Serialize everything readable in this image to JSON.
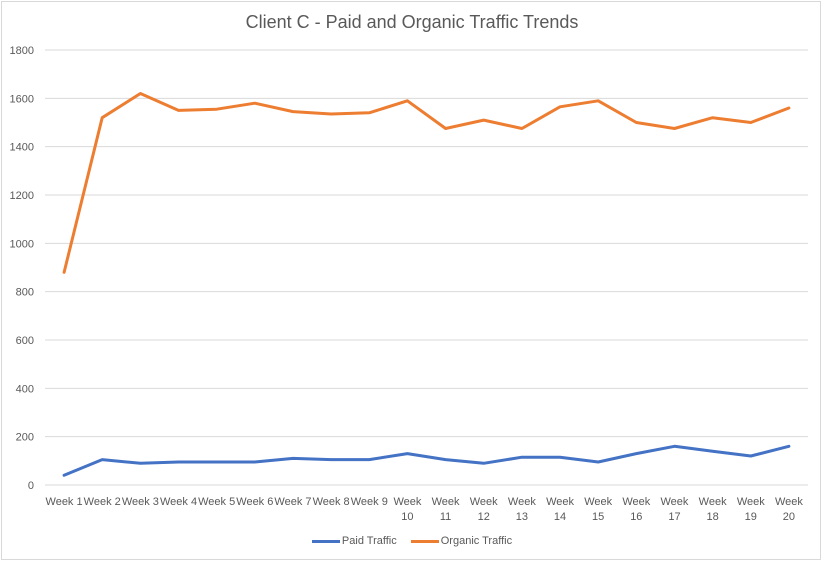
{
  "chart_data": {
    "type": "line",
    "title": "Client C - Paid and Organic Traffic Trends",
    "xlabel": "",
    "ylabel": "",
    "ylim": [
      0,
      1800
    ],
    "yticks": [
      "0",
      "200",
      "400",
      "600",
      "800",
      "1000",
      "1200",
      "1400",
      "1600",
      "1800"
    ],
    "ytick_values": [
      0,
      200,
      400,
      600,
      800,
      1000,
      1200,
      1400,
      1600,
      1800
    ],
    "grid": true,
    "legend_position": "bottom",
    "categories": [
      [
        "Week 1"
      ],
      [
        "Week 2"
      ],
      [
        "Week 3"
      ],
      [
        "Week 4"
      ],
      [
        "Week 5"
      ],
      [
        "Week 6"
      ],
      [
        "Week 7"
      ],
      [
        "Week 8"
      ],
      [
        "Week 9"
      ],
      [
        "Week",
        "10"
      ],
      [
        "Week",
        "11"
      ],
      [
        "Week",
        "12"
      ],
      [
        "Week",
        "13"
      ],
      [
        "Week",
        "14"
      ],
      [
        "Week",
        "15"
      ],
      [
        "Week",
        "16"
      ],
      [
        "Week",
        "17"
      ],
      [
        "Week",
        "18"
      ],
      [
        "Week",
        "19"
      ],
      [
        "Week",
        "20"
      ]
    ],
    "series": [
      {
        "name": "Paid Traffic",
        "color": "#4472c4",
        "values": [
          40,
          105,
          90,
          95,
          95,
          95,
          110,
          105,
          105,
          130,
          105,
          90,
          115,
          115,
          95,
          130,
          160,
          140,
          120,
          160
        ]
      },
      {
        "name": "Organic Traffic",
        "color": "#ed7d31",
        "values": [
          880,
          1520,
          1620,
          1550,
          1555,
          1580,
          1545,
          1535,
          1540,
          1590,
          1475,
          1510,
          1475,
          1565,
          1590,
          1500,
          1475,
          1520,
          1500,
          1560
        ]
      }
    ]
  }
}
